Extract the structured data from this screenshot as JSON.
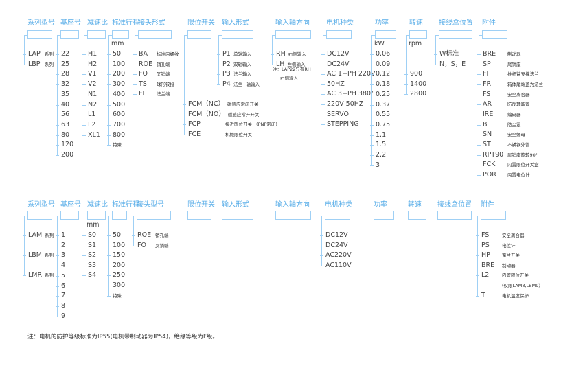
{
  "sections": [
    {
      "columns": [
        {
          "header": "系列型号",
          "items": [
            {
              "code": "LAP",
              "desc": "系列"
            },
            {
              "code": "LBP",
              "desc": "系列"
            }
          ]
        },
        {
          "header": "基座号",
          "items": [
            {
              "code": "22"
            },
            {
              "code": "25"
            },
            {
              "code": "28"
            },
            {
              "code": "32"
            },
            {
              "code": "35"
            },
            {
              "code": "40"
            },
            {
              "code": "56"
            },
            {
              "code": "63"
            },
            {
              "code": "80"
            },
            {
              "code": "120"
            },
            {
              "code": "200"
            }
          ]
        },
        {
          "header": "减速比",
          "items": [
            {
              "code": "H1"
            },
            {
              "code": "H2"
            },
            {
              "code": "V1"
            },
            {
              "code": "V2"
            },
            {
              "code": "N1"
            },
            {
              "code": "N2"
            },
            {
              "code": "L1"
            },
            {
              "code": "L2"
            },
            {
              "code": "XL1"
            }
          ]
        },
        {
          "header": "标准行程",
          "unit": "mm",
          "items": [
            {
              "code": "50"
            },
            {
              "code": "100"
            },
            {
              "code": "200"
            },
            {
              "code": "300"
            },
            {
              "code": "400"
            },
            {
              "code": "500"
            },
            {
              "code": "600"
            },
            {
              "code": "700"
            },
            {
              "code": "800"
            },
            {
              "code": "",
              "desc": "特殊"
            }
          ]
        },
        {
          "header": "接头形式",
          "items": [
            {
              "code": "BA",
              "desc": "标准内螺纹"
            },
            {
              "code": "ROE",
              "desc": "销孔端"
            },
            {
              "code": "FO",
              "desc": "叉销端"
            },
            {
              "code": "TS",
              "desc": "球形铰接"
            },
            {
              "code": "FL",
              "desc": "法兰端"
            }
          ]
        },
        {
          "header": "限位开关",
          "items": [
            {
              "code": "FCM（NC）",
              "desc": "磁感应常闭开关"
            },
            {
              "code": "FCM（NO）",
              "desc": "磁感应常开开关"
            },
            {
              "code": "FCP",
              "desc": "接近限位开关 （PNP常闭）"
            },
            {
              "code": "FCE",
              "desc": "机械限位开关"
            }
          ]
        },
        {
          "header": "输入形式",
          "items": [
            {
              "code": "P1",
              "desc": "单轴输入"
            },
            {
              "code": "P2",
              "desc": "双轴输入"
            },
            {
              "code": "P3",
              "desc": "法兰输入"
            },
            {
              "code": "P4",
              "desc": "法兰+轴输入"
            }
          ]
        },
        {
          "header": "输入轴方向",
          "items": [
            {
              "code": "RH",
              "desc": "右侧输入"
            },
            {
              "code": "LH",
              "desc": "左侧输入"
            }
          ],
          "note": [
            "注：LAP22只有RH",
            "右侧输入"
          ]
        },
        {
          "header": "电机种类",
          "items": [
            {
              "code": "DC12V"
            },
            {
              "code": "DC24V"
            },
            {
              "code": "AC 1−PH 220V"
            },
            {
              "code": "50HZ"
            },
            {
              "code": "AC 3−PH 380/"
            },
            {
              "code": "220V 50HZ"
            },
            {
              "code": "SERVO"
            },
            {
              "code": "STEPPING"
            }
          ]
        },
        {
          "header": "功率",
          "unit": "kW",
          "items": [
            {
              "code": "0.06"
            },
            {
              "code": "0.09"
            },
            {
              "code": "0.12"
            },
            {
              "code": "0.18"
            },
            {
              "code": "0.25"
            },
            {
              "code": "0.37"
            },
            {
              "code": "0.55"
            },
            {
              "code": "0.75"
            },
            {
              "code": "1.1"
            },
            {
              "code": "1.5"
            },
            {
              "code": "2.2"
            },
            {
              "code": "3"
            }
          ]
        },
        {
          "header": "转速",
          "unit": "rpm",
          "items": [
            {
              "code": "900"
            },
            {
              "code": "1400"
            },
            {
              "code": "2800"
            }
          ]
        },
        {
          "header": "接线盒位置",
          "items": [
            {
              "code": "W标准"
            },
            {
              "code": "N，S，E"
            }
          ]
        },
        {
          "header": "附件",
          "items": [
            {
              "code": "BRE",
              "desc": "制动器"
            },
            {
              "code": "SP",
              "desc": "尾销座"
            },
            {
              "code": "FI",
              "desc": "推杆臂支撑法兰"
            },
            {
              "code": "FR",
              "desc": "箱体尾端盖为法兰"
            },
            {
              "code": "FS",
              "desc": "安全离合器"
            },
            {
              "code": "AR",
              "desc": "防反转装置"
            },
            {
              "code": "IRE",
              "desc": "编码器"
            },
            {
              "code": "B",
              "desc": "防尘罩"
            },
            {
              "code": "SN",
              "desc": "安全螺母"
            },
            {
              "code": "ST",
              "desc": "不锈钢外管"
            },
            {
              "code": "RPT90",
              "desc": "尾销座旋转90°"
            },
            {
              "code": "FCK",
              "desc": "内置限位开关盒"
            },
            {
              "code": "POR",
              "desc": "内置电位计"
            }
          ]
        }
      ]
    },
    {
      "columns": [
        {
          "header": "系列型号",
          "items": [
            {
              "code": "LAM",
              "desc": "系列"
            },
            {
              "code": "LBM",
              "desc": "系列"
            },
            {
              "code": "LMR",
              "desc": "系列"
            }
          ]
        },
        {
          "header": "基座号",
          "items": [
            {
              "code": "1"
            },
            {
              "code": "2"
            },
            {
              "code": "3"
            },
            {
              "code": "4"
            },
            {
              "code": "5"
            },
            {
              "code": "6"
            },
            {
              "code": "7"
            },
            {
              "code": "8"
            },
            {
              "code": "9"
            }
          ]
        },
        {
          "header": "减速比",
          "unit": "mm",
          "items": [
            {
              "code": "S0"
            },
            {
              "code": "S1"
            },
            {
              "code": "S2"
            },
            {
              "code": "S3"
            },
            {
              "code": "S4"
            }
          ]
        },
        {
          "header": "标准行程",
          "items": [
            {
              "code": "50"
            },
            {
              "code": "100"
            },
            {
              "code": "150"
            },
            {
              "code": "200"
            },
            {
              "code": "250"
            },
            {
              "code": "300"
            },
            {
              "code": "",
              "desc": "特殊"
            }
          ]
        },
        {
          "header": "接头型号",
          "items": [
            {
              "code": "ROE",
              "desc": "销孔端"
            },
            {
              "code": "FO",
              "desc": "叉销端"
            }
          ]
        },
        {
          "header": "限位开关",
          "items": []
        },
        {
          "header": "输入形式",
          "items": []
        },
        {
          "header": "输入轴方向",
          "items": []
        },
        {
          "header": "电机种类",
          "items": [
            {
              "code": "DC12V"
            },
            {
              "code": "DC24V"
            },
            {
              "code": "AC220V"
            },
            {
              "code": "AC110V"
            }
          ]
        },
        {
          "header": "功率",
          "items": []
        },
        {
          "header": "转速",
          "items": []
        },
        {
          "header": "接线盒位置",
          "items": []
        },
        {
          "header": "附件",
          "items": [
            {
              "code": "FS",
              "desc": "安全离合器"
            },
            {
              "code": "PS",
              "desc": "电位计"
            },
            {
              "code": "HP",
              "desc": "簧片开关"
            },
            {
              "code": "BRE",
              "desc": "制动器"
            },
            {
              "code": "L2",
              "desc": "内置限位开关"
            },
            {
              "code": "",
              "desc": "（仅限LAM8,LBM9）"
            },
            {
              "code": "T",
              "desc": "电机温度保护"
            }
          ]
        }
      ]
    }
  ],
  "footnote": "注：电机的防护等级标准为IP55(电机带制动器为IP54)，绝缘等级为F级。",
  "colors": {
    "header": "#5aaee8",
    "line": "#9fd0f5",
    "text": "#444444"
  }
}
